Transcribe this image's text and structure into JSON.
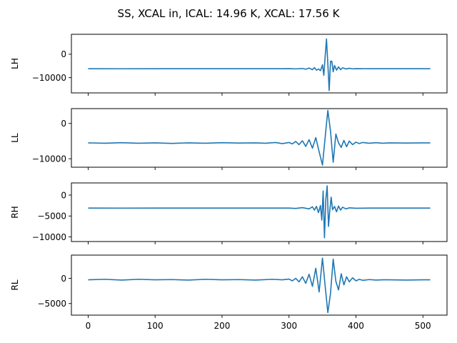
{
  "figure": {
    "title": "SS, XCAL in, ICAL: 14.96 K, XCAL: 17.56 K"
  },
  "colors": {
    "line": "#1f77b4",
    "axes": "#000000",
    "background": "#ffffff"
  },
  "chart_data": [
    {
      "type": "line",
      "ylabel": "LH",
      "xlim": [
        -25,
        536
      ],
      "ylim": [
        -16500,
        8500
      ],
      "yticks": [
        0,
        -10000
      ],
      "ytick_labels": [
        "0",
        "−10000"
      ],
      "xtick_labels_visible": false,
      "series": [
        {
          "x": [
            0,
            50,
            100,
            150,
            200,
            250,
            290,
            300,
            310,
            320,
            325,
            330,
            335,
            338,
            341,
            344,
            347,
            350,
            352,
            354,
            356,
            358,
            360,
            362,
            364,
            366,
            368,
            371,
            374,
            377,
            380,
            385,
            390,
            395,
            400,
            420,
            450,
            500,
            511
          ],
          "values": [
            -6200,
            -6210,
            -6190,
            -6200,
            -6190,
            -6200,
            -6200,
            -6150,
            -6250,
            -6100,
            -6400,
            -5900,
            -6600,
            -5700,
            -6800,
            -6300,
            -7000,
            -4500,
            -9000,
            -1000,
            6500,
            -4000,
            -15500,
            -3000,
            -3000,
            -7500,
            -4800,
            -6800,
            -5400,
            -6600,
            -5800,
            -6300,
            -6000,
            -6250,
            -6150,
            -6200,
            -6190,
            -6200,
            -6200
          ]
        }
      ]
    },
    {
      "type": "line",
      "ylabel": "LL",
      "xlim": [
        -25,
        536
      ],
      "ylim": [
        -12400,
        4200
      ],
      "yticks": [
        0,
        -10000
      ],
      "ytick_labels": [
        "0",
        "−10000"
      ],
      "xtick_labels_visible": false,
      "series": [
        {
          "x": [
            0,
            25,
            50,
            75,
            100,
            125,
            150,
            175,
            200,
            225,
            250,
            265,
            280,
            290,
            300,
            305,
            310,
            315,
            320,
            325,
            330,
            335,
            340,
            345,
            350,
            355,
            358,
            362,
            366,
            370,
            374,
            378,
            382,
            386,
            390,
            395,
            400,
            405,
            410,
            420,
            430,
            440,
            450,
            475,
            500,
            511
          ],
          "values": [
            -5500,
            -5600,
            -5450,
            -5600,
            -5500,
            -5650,
            -5500,
            -5600,
            -5450,
            -5550,
            -5500,
            -5600,
            -5400,
            -5700,
            -5400,
            -5800,
            -5100,
            -6000,
            -4900,
            -6500,
            -4600,
            -7000,
            -4000,
            -8000,
            -11800,
            -2000,
            3700,
            -2200,
            -11000,
            -3000,
            -5500,
            -6800,
            -4800,
            -6600,
            -5000,
            -6000,
            -5300,
            -5700,
            -5400,
            -5600,
            -5450,
            -5600,
            -5500,
            -5550,
            -5500,
            -5500
          ]
        }
      ]
    },
    {
      "type": "line",
      "ylabel": "RH",
      "xlim": [
        -25,
        536
      ],
      "ylim": [
        -11100,
        2900
      ],
      "yticks": [
        0,
        -5000,
        -10000
      ],
      "ytick_labels": [
        "0",
        "−5000",
        "−10000"
      ],
      "xtick_labels_visible": false,
      "series": [
        {
          "x": [
            0,
            50,
            100,
            150,
            200,
            250,
            300,
            310,
            320,
            330,
            335,
            338,
            341,
            344,
            347,
            349,
            351,
            353,
            355,
            357,
            359,
            361,
            363,
            365,
            368,
            371,
            374,
            377,
            380,
            385,
            390,
            400,
            420,
            450,
            500,
            511
          ],
          "values": [
            -3100,
            -3120,
            -3100,
            -3110,
            -3100,
            -3110,
            -3100,
            -3200,
            -3000,
            -3300,
            -2800,
            -3600,
            -2700,
            -4200,
            -2500,
            -6000,
            1000,
            -10200,
            -1000,
            2200,
            -7500,
            -3500,
            -500,
            -3500,
            -2700,
            -4000,
            -2600,
            -3600,
            -2900,
            -3300,
            -3050,
            -3150,
            -3100,
            -3110,
            -3100,
            -3100
          ]
        }
      ]
    },
    {
      "type": "line",
      "ylabel": "RL",
      "xlim": [
        -25,
        536
      ],
      "ylim": [
        -7300,
        4600
      ],
      "yticks": [
        0,
        -5000
      ],
      "ytick_labels": [
        "0",
        "−5000"
      ],
      "xtick_labels_visible": true,
      "xticks": [
        0,
        100,
        200,
        300,
        400,
        500
      ],
      "xtick_labels": [
        "0",
        "100",
        "200",
        "300",
        "400",
        "500"
      ],
      "series": [
        {
          "x": [
            0,
            25,
            50,
            75,
            100,
            125,
            150,
            175,
            200,
            225,
            250,
            275,
            290,
            300,
            305,
            310,
            315,
            320,
            325,
            330,
            335,
            340,
            345,
            350,
            354,
            358,
            362,
            366,
            370,
            374,
            378,
            382,
            386,
            390,
            395,
            400,
            405,
            410,
            420,
            430,
            440,
            450,
            475,
            500,
            511
          ],
          "values": [
            -300,
            -200,
            -350,
            -200,
            -300,
            -250,
            -350,
            -200,
            -300,
            -250,
            -350,
            -200,
            -300,
            -150,
            -500,
            0,
            -700,
            300,
            -1000,
            800,
            -1600,
            2000,
            -2700,
            4000,
            -1500,
            -6800,
            -3000,
            3800,
            -600,
            -2300,
            900,
            -1300,
            300,
            -700,
            100,
            -500,
            -200,
            -400,
            -250,
            -350,
            -300,
            -300,
            -350,
            -300,
            -300
          ]
        }
      ]
    }
  ]
}
